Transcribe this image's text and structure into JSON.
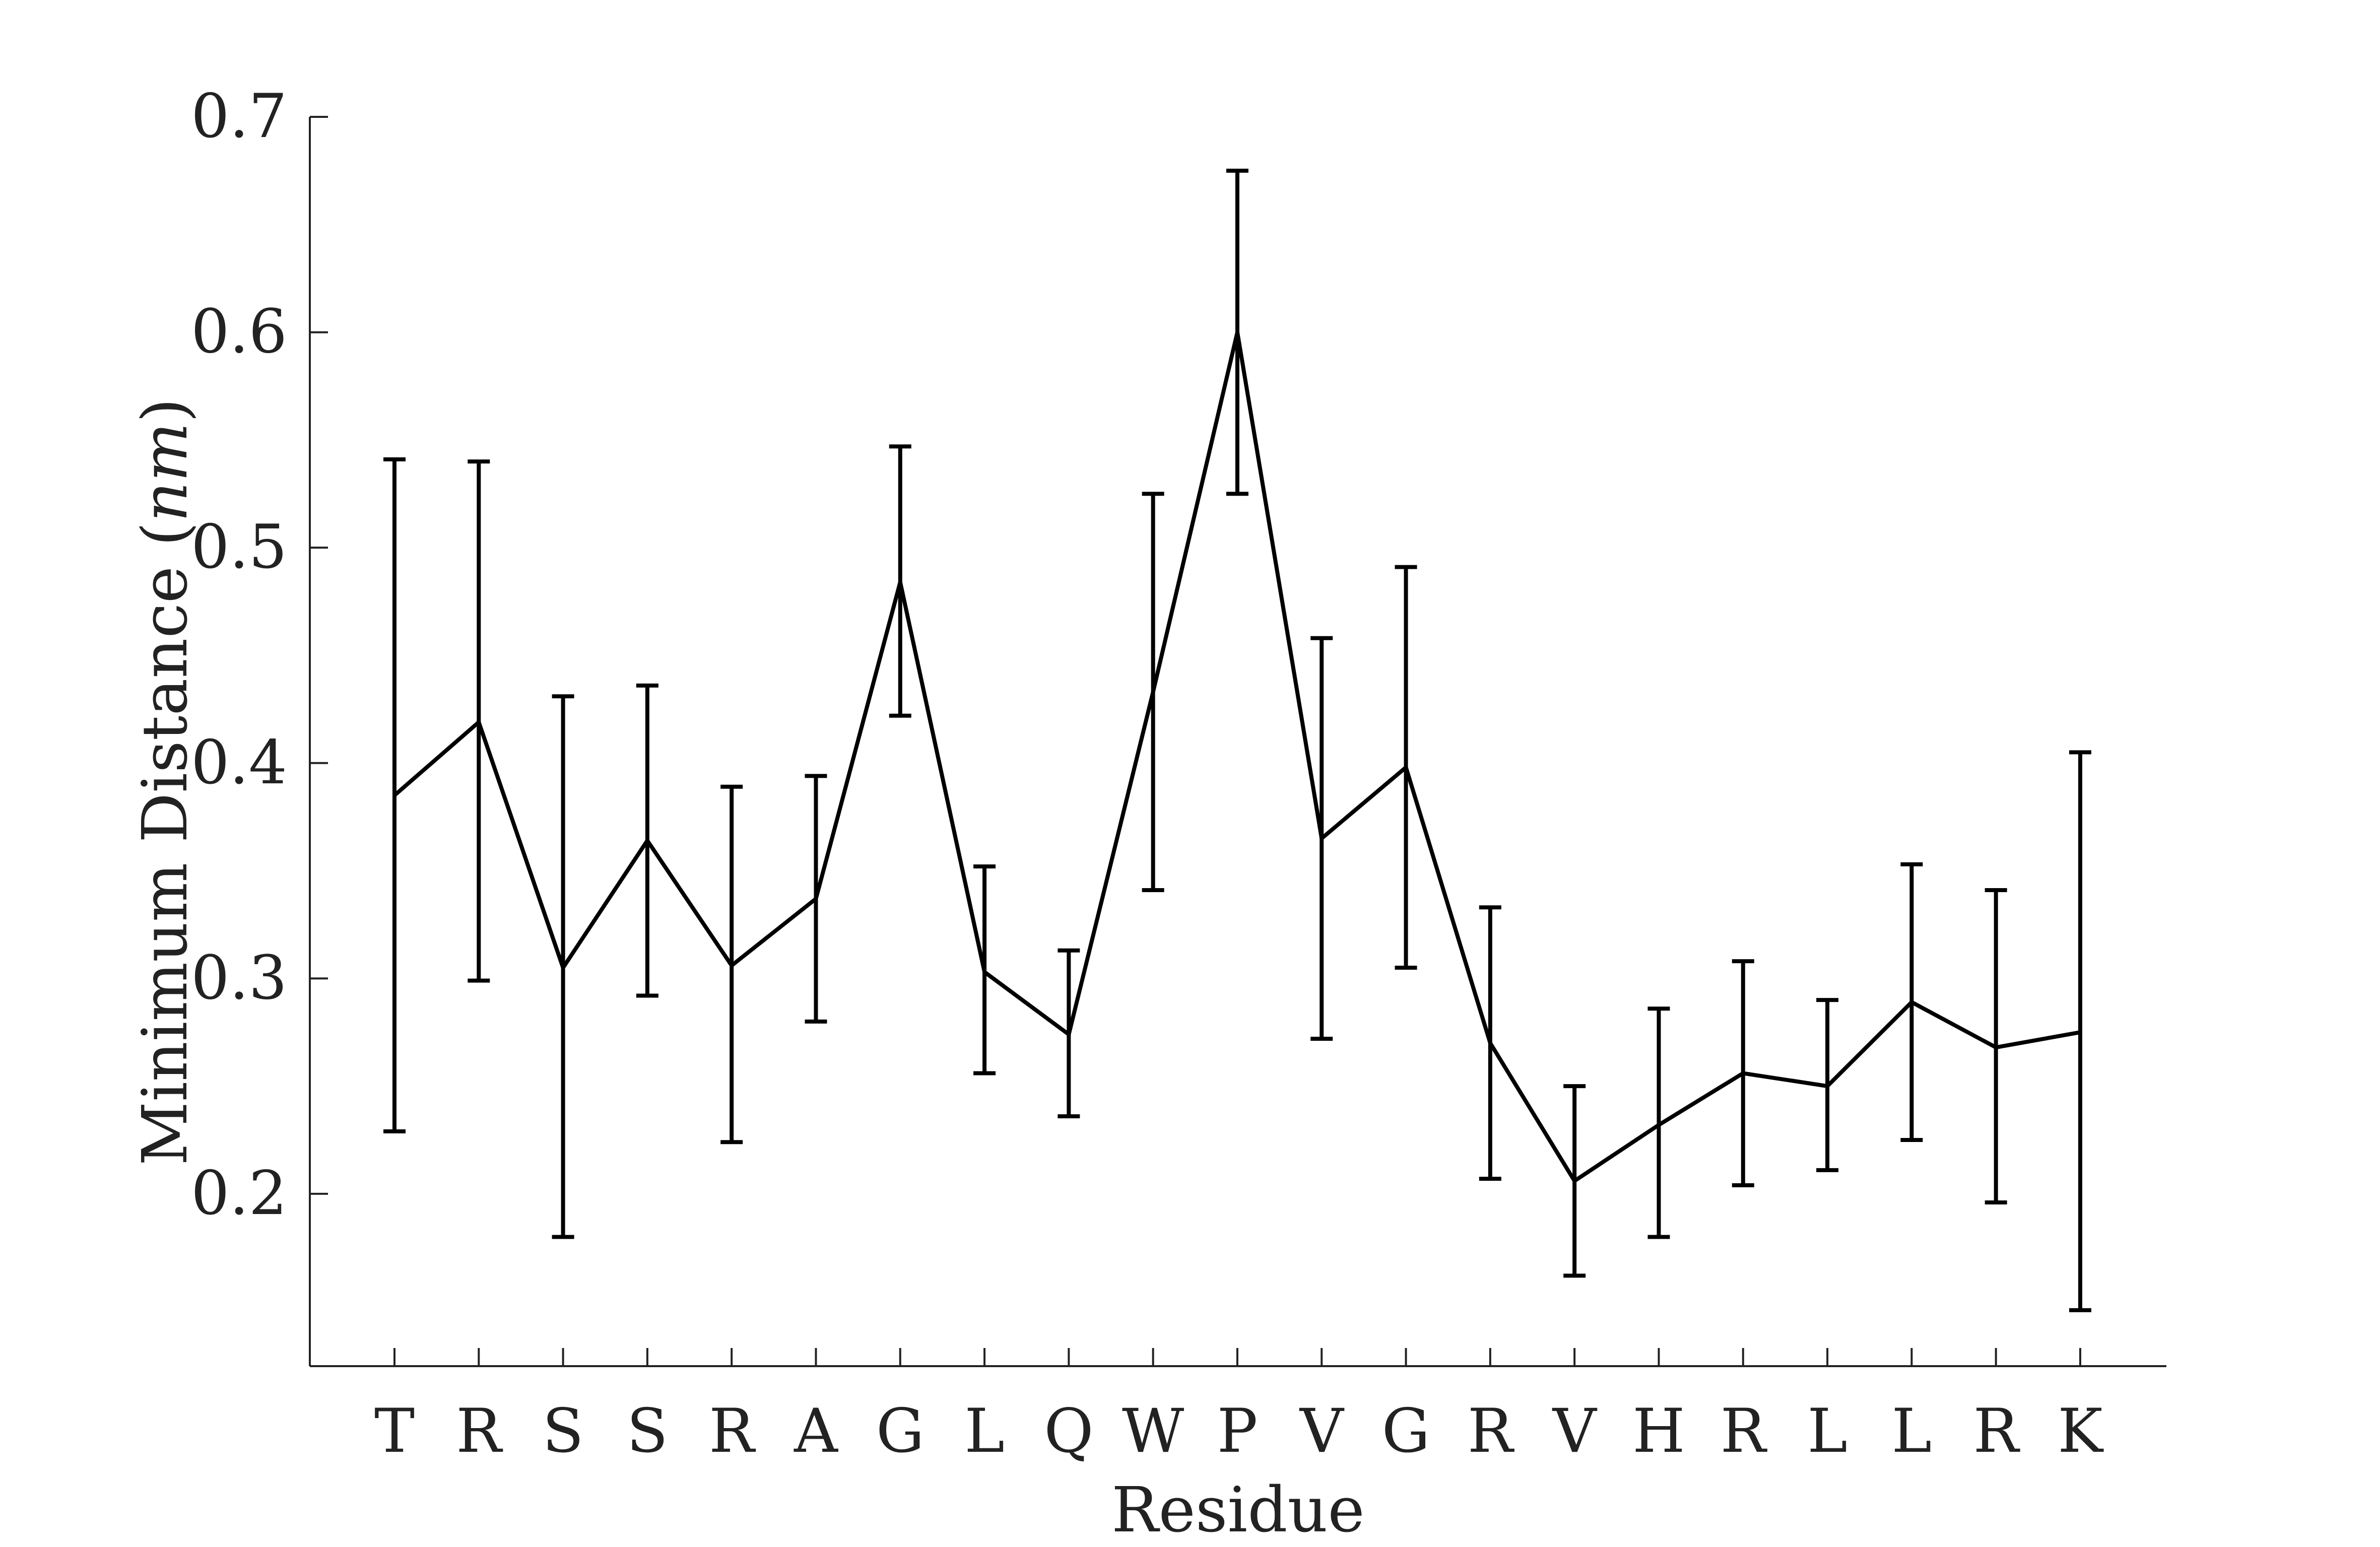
{
  "chart_data": {
    "type": "line",
    "title": "",
    "xlabel": "Residue",
    "ylabel": "Minimum Distance (nm)",
    "ylabel_parts": {
      "before": "Minimum Distance (",
      "italic": "nm",
      "after": ")"
    },
    "categories": [
      "T",
      "R",
      "S",
      "S",
      "R",
      "A",
      "G",
      "L",
      "Q",
      "W",
      "P",
      "V",
      "G",
      "R",
      "V",
      "H",
      "R",
      "L",
      "L",
      "R",
      "K"
    ],
    "ylim": [
      0.12,
      0.7
    ],
    "yticks": [
      0.2,
      0.3,
      0.4,
      0.5,
      0.6,
      0.7
    ],
    "ytick_labels": [
      "0.2",
      "0.3",
      "0.4",
      "0.5",
      "0.6",
      "0.7"
    ],
    "grid": false,
    "series": [
      {
        "values": [
          0.385,
          0.419,
          0.305,
          0.364,
          0.306,
          0.337,
          0.484,
          0.303,
          0.274,
          0.433,
          0.6,
          0.365,
          0.398,
          0.27,
          0.206,
          0.232,
          0.256,
          0.25,
          0.289,
          0.268,
          0.275
        ],
        "error_low": [
          0.229,
          0.299,
          0.18,
          0.292,
          0.224,
          0.28,
          0.422,
          0.256,
          0.236,
          0.341,
          0.525,
          0.272,
          0.305,
          0.207,
          0.162,
          0.18,
          0.204,
          0.211,
          0.225,
          0.196,
          0.146
        ],
        "error_high": [
          0.541,
          0.54,
          0.431,
          0.436,
          0.389,
          0.394,
          0.547,
          0.352,
          0.313,
          0.525,
          0.675,
          0.458,
          0.491,
          0.333,
          0.25,
          0.286,
          0.308,
          0.29,
          0.353,
          0.341,
          0.405
        ]
      }
    ]
  }
}
